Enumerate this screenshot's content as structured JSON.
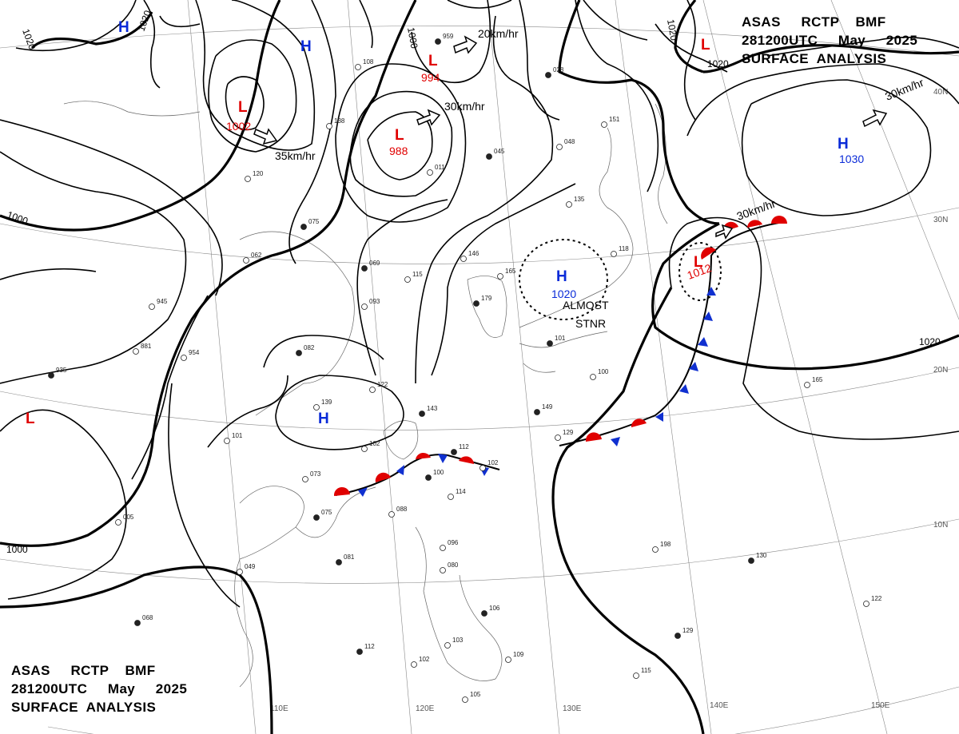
{
  "title": {
    "line1": "ASAS     RCTP    BMF",
    "line2": "281200UTC     May     2025",
    "line3": "SURFACE  ANALYSIS"
  },
  "colors": {
    "high": "#0a2bd8",
    "low": "#e00000",
    "warm_front": "#e00000",
    "cold_front": "#1030d0",
    "lines": "#000000"
  },
  "grid_labels": {
    "lat": [
      "40N",
      "30N",
      "20N",
      "10N"
    ],
    "lon": [
      "110E",
      "120E",
      "130E",
      "140E",
      "150E"
    ]
  },
  "isobar_labels": [
    "1020",
    "1020",
    "1000",
    "1000",
    "1000",
    "1020",
    "1020",
    "1020"
  ],
  "pressure_centers": [
    {
      "type": "H",
      "value": ""
    },
    {
      "type": "H",
      "value": ""
    },
    {
      "type": "L",
      "value": "1002"
    },
    {
      "type": "L",
      "value": "994"
    },
    {
      "type": "L",
      "value": "988"
    },
    {
      "type": "H",
      "value": "1030"
    },
    {
      "type": "L",
      "value": ""
    },
    {
      "type": "H",
      "value": "1020"
    },
    {
      "type": "L",
      "value": "1012"
    },
    {
      "type": "H",
      "value": ""
    },
    {
      "type": "L",
      "value": ""
    }
  ],
  "motions": [
    "35km/hr",
    "20km/hr",
    "30km/hr",
    "30km/hr",
    "30km/hr"
  ],
  "annotations": {
    "stationary_line1": "ALMOST",
    "stationary_line2": "STNR"
  },
  "stations": [
    "959",
    "108",
    "138",
    "045",
    "011",
    "120",
    "075",
    "146",
    "165",
    "179",
    "135",
    "093",
    "082",
    "122",
    "139",
    "143",
    "101",
    "102",
    "112",
    "102",
    "129",
    "149",
    "165",
    "073",
    "100",
    "114",
    "088",
    "075",
    "005",
    "049",
    "081",
    "096",
    "080",
    "106",
    "103",
    "109",
    "112",
    "102",
    "115",
    "129",
    "122",
    "198",
    "130",
    "945",
    "954",
    "935",
    "881",
    "062",
    "069",
    "115",
    "048",
    "028",
    "151",
    "118",
    "101",
    "100",
    "105",
    "068"
  ]
}
